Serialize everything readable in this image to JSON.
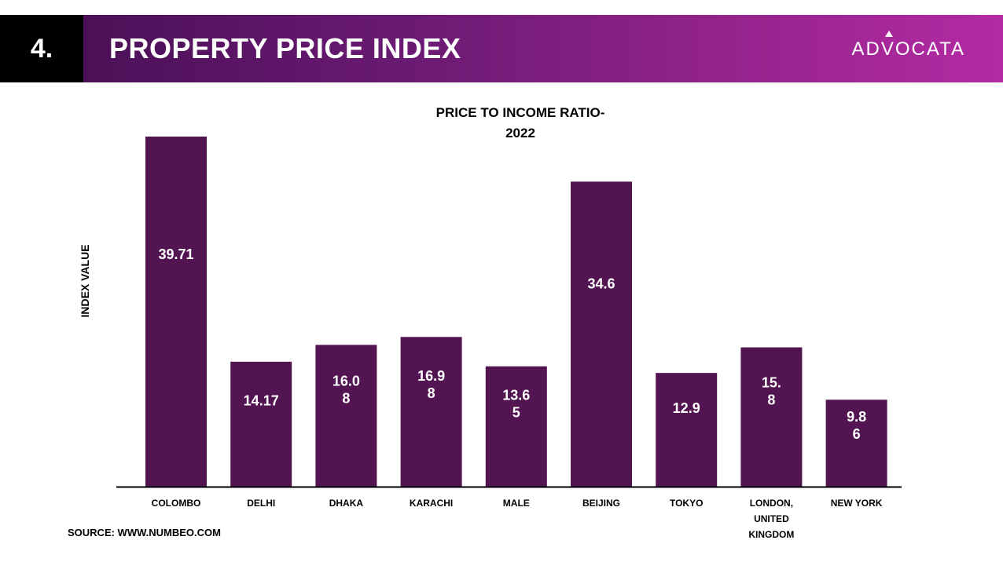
{
  "header": {
    "number": "4.",
    "title": "PROPERTY PRICE INDEX",
    "logo_text": "ADVOCATA"
  },
  "chart_data": {
    "type": "bar",
    "title_lines": [
      "PRICE TO INCOME RATIO-",
      "2022"
    ],
    "ylabel": "INDEX VALUE",
    "categories": [
      [
        "COLOMBO"
      ],
      [
        "DELHI"
      ],
      [
        "DHAKA"
      ],
      [
        "KARACHI"
      ],
      [
        "MALE"
      ],
      [
        "BEIJING"
      ],
      [
        "TOKYO"
      ],
      [
        "LONDON,",
        "UNITED",
        "KINGDOM"
      ],
      [
        "NEW YORK"
      ]
    ],
    "values": [
      39.71,
      14.17,
      16.08,
      16.98,
      13.65,
      34.6,
      12.9,
      15.8,
      9.86
    ],
    "data_labels": [
      [
        "39.71"
      ],
      [
        "14.17"
      ],
      [
        "16.0",
        "8"
      ],
      [
        "16.9",
        "8"
      ],
      [
        "13.6",
        "5"
      ],
      [
        "34.6"
      ],
      [
        "12.9"
      ],
      [
        "15.",
        "8"
      ],
      [
        "9.8",
        "6"
      ]
    ],
    "ylim": [
      0,
      40
    ],
    "grid": false,
    "legend": false,
    "bar_color": "#521552"
  },
  "footer": {
    "source": "SOURCE: WWW.NUMBEO.COM"
  }
}
